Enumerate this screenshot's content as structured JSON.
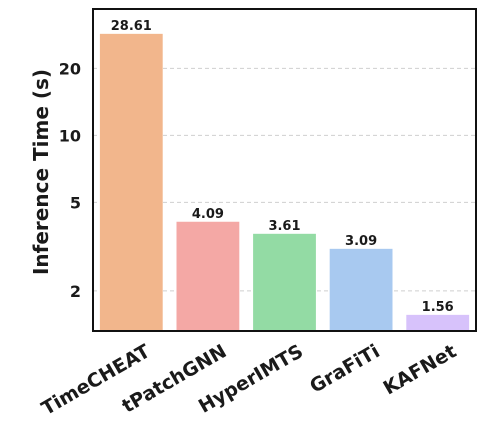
{
  "chart_data": {
    "type": "bar",
    "categories": [
      "TimeCHEAT",
      "tPatchGNN",
      "HyperIMTS",
      "GraFiTi",
      "KAFNet"
    ],
    "values": [
      28.61,
      4.09,
      3.61,
      3.09,
      1.56
    ],
    "value_labels": [
      "28.61",
      "4.09",
      "3.61",
      "3.09",
      "1.56"
    ],
    "colors": [
      "#f2b68c",
      "#f4a8a5",
      "#93dba4",
      "#a8c9f0",
      "#d7c2fb"
    ],
    "xlabel": "",
    "ylabel": "Inference Time (s)",
    "yscale": "log",
    "ylim": [
      1.32,
      37
    ],
    "yticks": [
      2,
      5,
      10,
      20
    ],
    "ytick_labels": [
      "2",
      "5",
      "10",
      "20"
    ],
    "grid": true,
    "legend": false
  }
}
